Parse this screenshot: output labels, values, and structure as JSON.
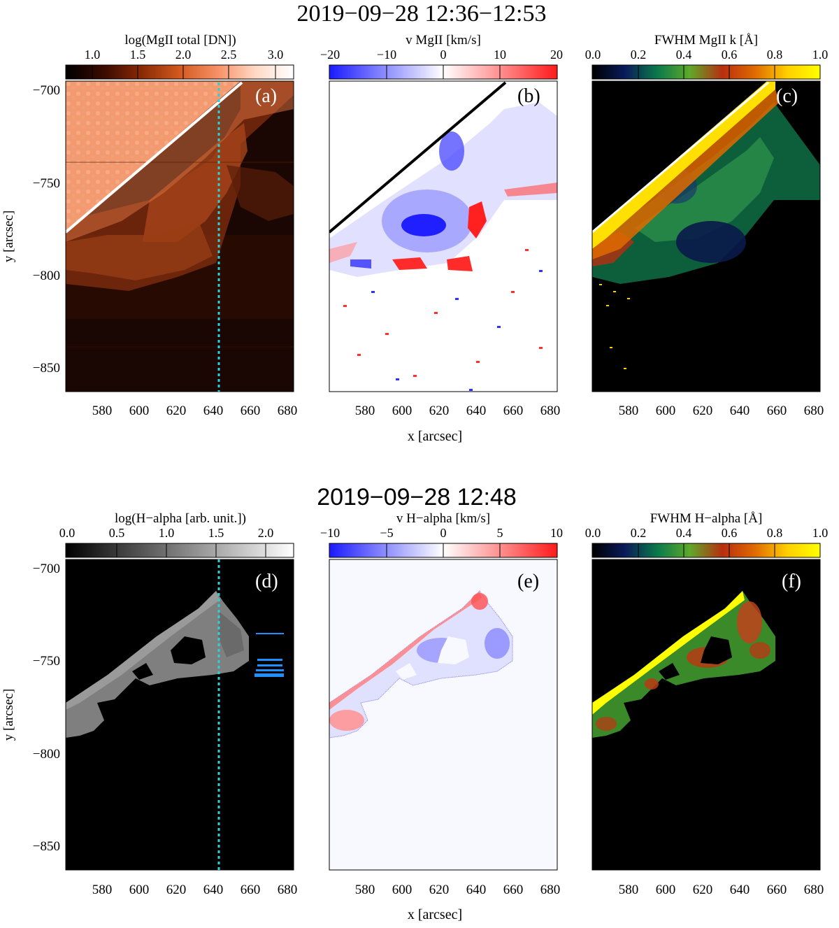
{
  "top_row": {
    "title": "2019−09−28 12:36−12:53",
    "xlabel": "x [arcsec]",
    "ylabel": "y [arcsec]",
    "x_ticks": [
      "580",
      "600",
      "620",
      "640",
      "660",
      "680"
    ],
    "y_ticks": [
      "−700",
      "−750",
      "−800",
      "−850"
    ],
    "panels": [
      {
        "id": "a",
        "label": "(a)",
        "colorbar_title": "log(MgII total [DN])",
        "colorbar_ticks": [
          "1.0",
          "1.5",
          "2.0",
          "2.5",
          "3.0"
        ],
        "colormap": [
          "#000000",
          "#3a0a00",
          "#8a2a05",
          "#d2591f",
          "#f79066",
          "#ffd9c6",
          "#ffffff"
        ],
        "cut_line": "x = 642 arcsec (dotted, cyan)"
      },
      {
        "id": "b",
        "label": "(b)",
        "colorbar_title": "v MgII [km/s]",
        "colorbar_ticks": [
          "−20",
          "−10",
          "0",
          "10",
          "20"
        ],
        "colormap": [
          "#1a1aff",
          "#8f8fff",
          "#ffffff",
          "#ff8f8f",
          "#ff1a1a"
        ]
      },
      {
        "id": "c",
        "label": "(c)",
        "colorbar_title": "FWHM MgII k [Å]",
        "colorbar_ticks": [
          "0.0",
          "0.2",
          "0.4",
          "0.6",
          "0.8",
          "1.0"
        ],
        "colormap": [
          "#000000",
          "#0a1a5a",
          "#0a7a4a",
          "#5fa82a",
          "#b82e10",
          "#e06a00",
          "#ffd000",
          "#ffff00"
        ]
      }
    ]
  },
  "bottom_row": {
    "title": "2019−09−28 12:48",
    "xlabel": "x [arcsec]",
    "ylabel": "y [arcsec]",
    "x_ticks": [
      "580",
      "600",
      "620",
      "640",
      "660",
      "680"
    ],
    "y_ticks": [
      "−700",
      "−750",
      "−800",
      "−850"
    ],
    "panels": [
      {
        "id": "d",
        "label": "(d)",
        "colorbar_title": "log(H−alpha [arb. unit.])",
        "colorbar_ticks": [
          "0.0",
          "0.5",
          "1.0",
          "1.5",
          "2.0"
        ],
        "colormap": [
          "#000000",
          "#555555",
          "#aaaaaa",
          "#ffffff"
        ]
      },
      {
        "id": "e",
        "label": "(e)",
        "colorbar_title": "v H−alpha [km/s]",
        "colorbar_ticks": [
          "−10",
          "−5",
          "0",
          "5",
          "10"
        ],
        "colormap": [
          "#1a1aff",
          "#8f8fff",
          "#ffffff",
          "#ff8f8f",
          "#ff1a1a"
        ]
      },
      {
        "id": "f",
        "label": "(f)",
        "colorbar_title": "FWHM H−alpha [Å]",
        "colorbar_ticks": [
          "0.0",
          "0.2",
          "0.4",
          "0.6",
          "0.8",
          "1.0"
        ],
        "colormap": [
          "#000000",
          "#0a1a5a",
          "#0a7a4a",
          "#5fa82a",
          "#b82e10",
          "#e06a00",
          "#ffd000",
          "#ffff00"
        ]
      }
    ]
  },
  "colors": {
    "cut_line": "#2ad3d3",
    "limb_line_a": "#ffffff",
    "limb_line_b": "#000000",
    "marker_d": "#1e90ff"
  }
}
